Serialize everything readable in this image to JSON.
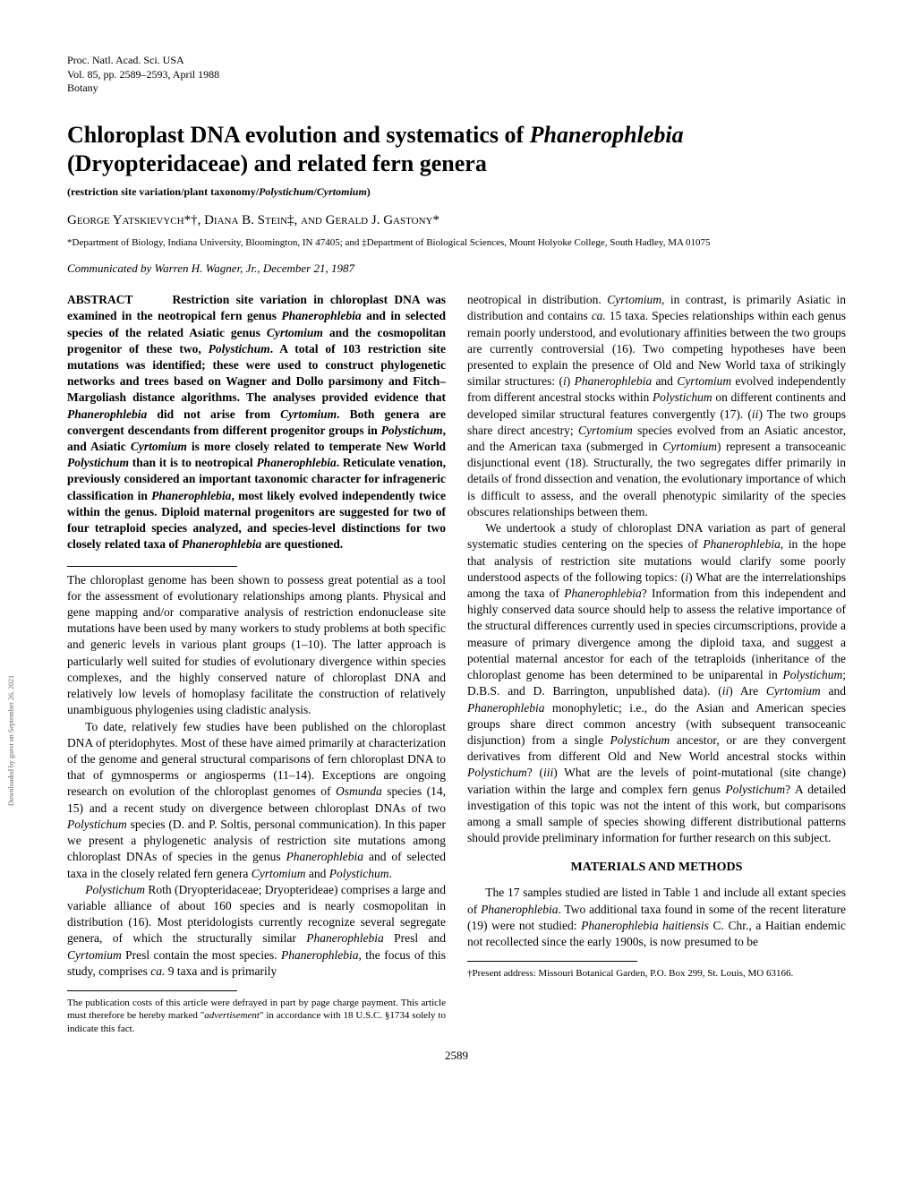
{
  "header": {
    "line1": "Proc. Natl. Acad. Sci. USA",
    "line2": "Vol. 85, pp. 2589–2593, April 1988",
    "line3": "Botany"
  },
  "title_html": "Chloroplast DNA evolution and systematics of <span class=\"italic\">Phanerophlebia</span> (Dryopteridaceae) and related fern genera",
  "subtitle_html": "(restriction site variation/plant taxonomy/<span class=\"italic\">Polystichum</span>/<span class=\"italic\">Cyrtomium</span>)",
  "authors_html": "George Yatskievych*†, Diana B. Stein‡, and Gerald J. Gastony*",
  "affiliations": "*Department of Biology, Indiana University, Bloomington, IN 47405; and ‡Department of Biological Sciences, Mount Holyoke College, South Hadley, MA 01075",
  "communicated": "Communicated by Warren H. Wagner, Jr., December 21, 1987",
  "abstract_label": "ABSTRACT",
  "abstract_html": "Restriction site variation in chloroplast DNA was examined in the neotropical fern genus <span class=\"italic\">Phanerophlebia</span> and in selected species of the related Asiatic genus <span class=\"italic\">Cyrtomium</span> and the cosmopolitan progenitor of these two, <span class=\"italic\">Polystichum</span>. A total of 103 restriction site mutations was identified; these were used to construct phylogenetic networks and trees based on Wagner and Dollo parsimony and Fitch–Margoliash distance algorithms. The analyses provided evidence that <span class=\"italic\">Phanerophlebia</span> did not arise from <span class=\"italic\">Cyrtomium</span>. Both genera are convergent descendants from different progenitor groups in <span class=\"italic\">Polystichum</span>, and Asiatic <span class=\"italic\">Cyrtomium</span> is more closely related to temperate New World <span class=\"italic\">Polystichum</span> than it is to neotropical <span class=\"italic\">Phanerophlebia</span>. Reticulate venation, previously considered an important taxonomic character for infrageneric classification in <span class=\"italic\">Phanerophlebia</span>, most likely evolved independently twice within the genus. Diploid maternal progenitors are suggested for two of four tetraploid species analyzed, and species-level distinctions for two closely related taxa of <span class=\"italic\">Phanerophlebia</span> are questioned.",
  "body": {
    "p1_html": "The chloroplast genome has been shown to possess great potential as a tool for the assessment of evolutionary relationships among plants. Physical and gene mapping and/or comparative analysis of restriction endonuclease site mutations have been used by many workers to study problems at both specific and generic levels in various plant groups (1–10). The latter approach is particularly well suited for studies of evolutionary divergence within species complexes, and the highly conserved nature of chloroplast DNA and relatively low levels of homoplasy facilitate the construction of relatively unambiguous phylogenies using cladistic analysis.",
    "p2_html": "To date, relatively few studies have been published on the chloroplast DNA of pteridophytes. Most of these have aimed primarily at characterization of the genome and general structural comparisons of fern chloroplast DNA to that of gymnosperms or angiosperms (11–14). Exceptions are ongoing research on evolution of the chloroplast genomes of <span class=\"italic\">Osmunda</span> species (14, 15) and a recent study on divergence between chloroplast DNAs of two <span class=\"italic\">Polystichum</span> species (D. and P. Soltis, personal communication). In this paper we present a phylogenetic analysis of restriction site mutations among chloroplast DNAs of species in the genus <span class=\"italic\">Phanerophlebia</span> and of selected taxa in the closely related fern genera <span class=\"italic\">Cyrtomium</span> and <span class=\"italic\">Polystichum</span>.",
    "p3_html": "<span class=\"italic\">Polystichum</span> Roth (Dryopteridaceae; Dryopterideae) comprises a large and variable alliance of about 160 species and is nearly cosmopolitan in distribution (16). Most pteridologists currently recognize several segregate genera, of which the structurally similar <span class=\"italic\">Phanerophlebia</span> Presl and <span class=\"italic\">Cyrtomium</span> Presl contain the most species. <span class=\"italic\">Phanerophlebia</span>, the focus of this study, comprises <span class=\"italic\">ca.</span> 9 taxa and is primarily",
    "p4_html": "neotropical in distribution. <span class=\"italic\">Cyrtomium</span>, in contrast, is primarily Asiatic in distribution and contains <span class=\"italic\">ca.</span> 15 taxa. Species relationships within each genus remain poorly understood, and evolutionary affinities between the two groups are currently controversial (16). Two competing hypotheses have been presented to explain the presence of Old and New World taxa of strikingly similar structures: (<span class=\"italic\">i</span>) <span class=\"italic\">Phanerophlebia</span> and <span class=\"italic\">Cyrtomium</span> evolved independently from different ancestral stocks within <span class=\"italic\">Polystichum</span> on different continents and developed similar structural features convergently (17). (<span class=\"italic\">ii</span>) The two groups share direct ancestry; <span class=\"italic\">Cyrtomium</span> species evolved from an Asiatic ancestor, and the American taxa (submerged in <span class=\"italic\">Cyrtomium</span>) represent a transoceanic disjunctional event (18). Structurally, the two segregates differ primarily in details of frond dissection and venation, the evolutionary importance of which is difficult to assess, and the overall phenotypic similarity of the species obscures relationships between them.",
    "p5_html": "We undertook a study of chloroplast DNA variation as part of general systematic studies centering on the species of <span class=\"italic\">Phanerophlebia</span>, in the hope that analysis of restriction site mutations would clarify some poorly understood aspects of the following topics: (<span class=\"italic\">i</span>) What are the interrelationships among the taxa of <span class=\"italic\">Phanerophlebia</span>? Information from this independent and highly conserved data source should help to assess the relative importance of the structural differences currently used in species circumscriptions, provide a measure of primary divergence among the diploid taxa, and suggest a potential maternal ancestor for each of the tetraploids (inheritance of the chloroplast genome has been determined to be uniparental in <span class=\"italic\">Polystichum</span>; D.B.S. and D. Barrington, unpublished data). (<span class=\"italic\">ii</span>) Are <span class=\"italic\">Cyrtomium</span> and <span class=\"italic\">Phanerophlebia</span> monophyletic; i.e., do the Asian and American species groups share direct common ancestry (with subsequent transoceanic disjunction) from a single <span class=\"italic\">Polystichum</span> ancestor, or are they convergent derivatives from different Old and New World ancestral stocks within <span class=\"italic\">Polystichum</span>? (<span class=\"italic\">iii</span>) What are the levels of point-mutational (site change) variation within the large and complex fern genus <span class=\"italic\">Polystichum</span>? A detailed investigation of this topic was not the intent of this work, but comparisons among a small sample of species showing different distributional patterns should provide preliminary information for further research on this subject.",
    "methods_heading": "MATERIALS AND METHODS",
    "p6_html": "The 17 samples studied are listed in Table 1 and include all extant species of <span class=\"italic\">Phanerophlebia</span>. Two additional taxa found in some of the recent literature (19) were not studied: <span class=\"italic\">Phanerophlebia haitiensis</span> C. Chr., a Haitian endemic not recollected since the early 1900s, is now presumed to be"
  },
  "footnotes": {
    "left_html": "The publication costs of this article were defrayed in part by page charge payment. This article must therefore be hereby marked \"<span class=\"italic\">advertisement</span>\" in accordance with 18 U.S.C. §1734 solely to indicate this fact.",
    "right": "†Present address: Missouri Botanical Garden, P.O. Box 299, St. Louis, MO 63166."
  },
  "page_number": "2589",
  "side_text": "Downloaded by guest on September 26, 2021"
}
